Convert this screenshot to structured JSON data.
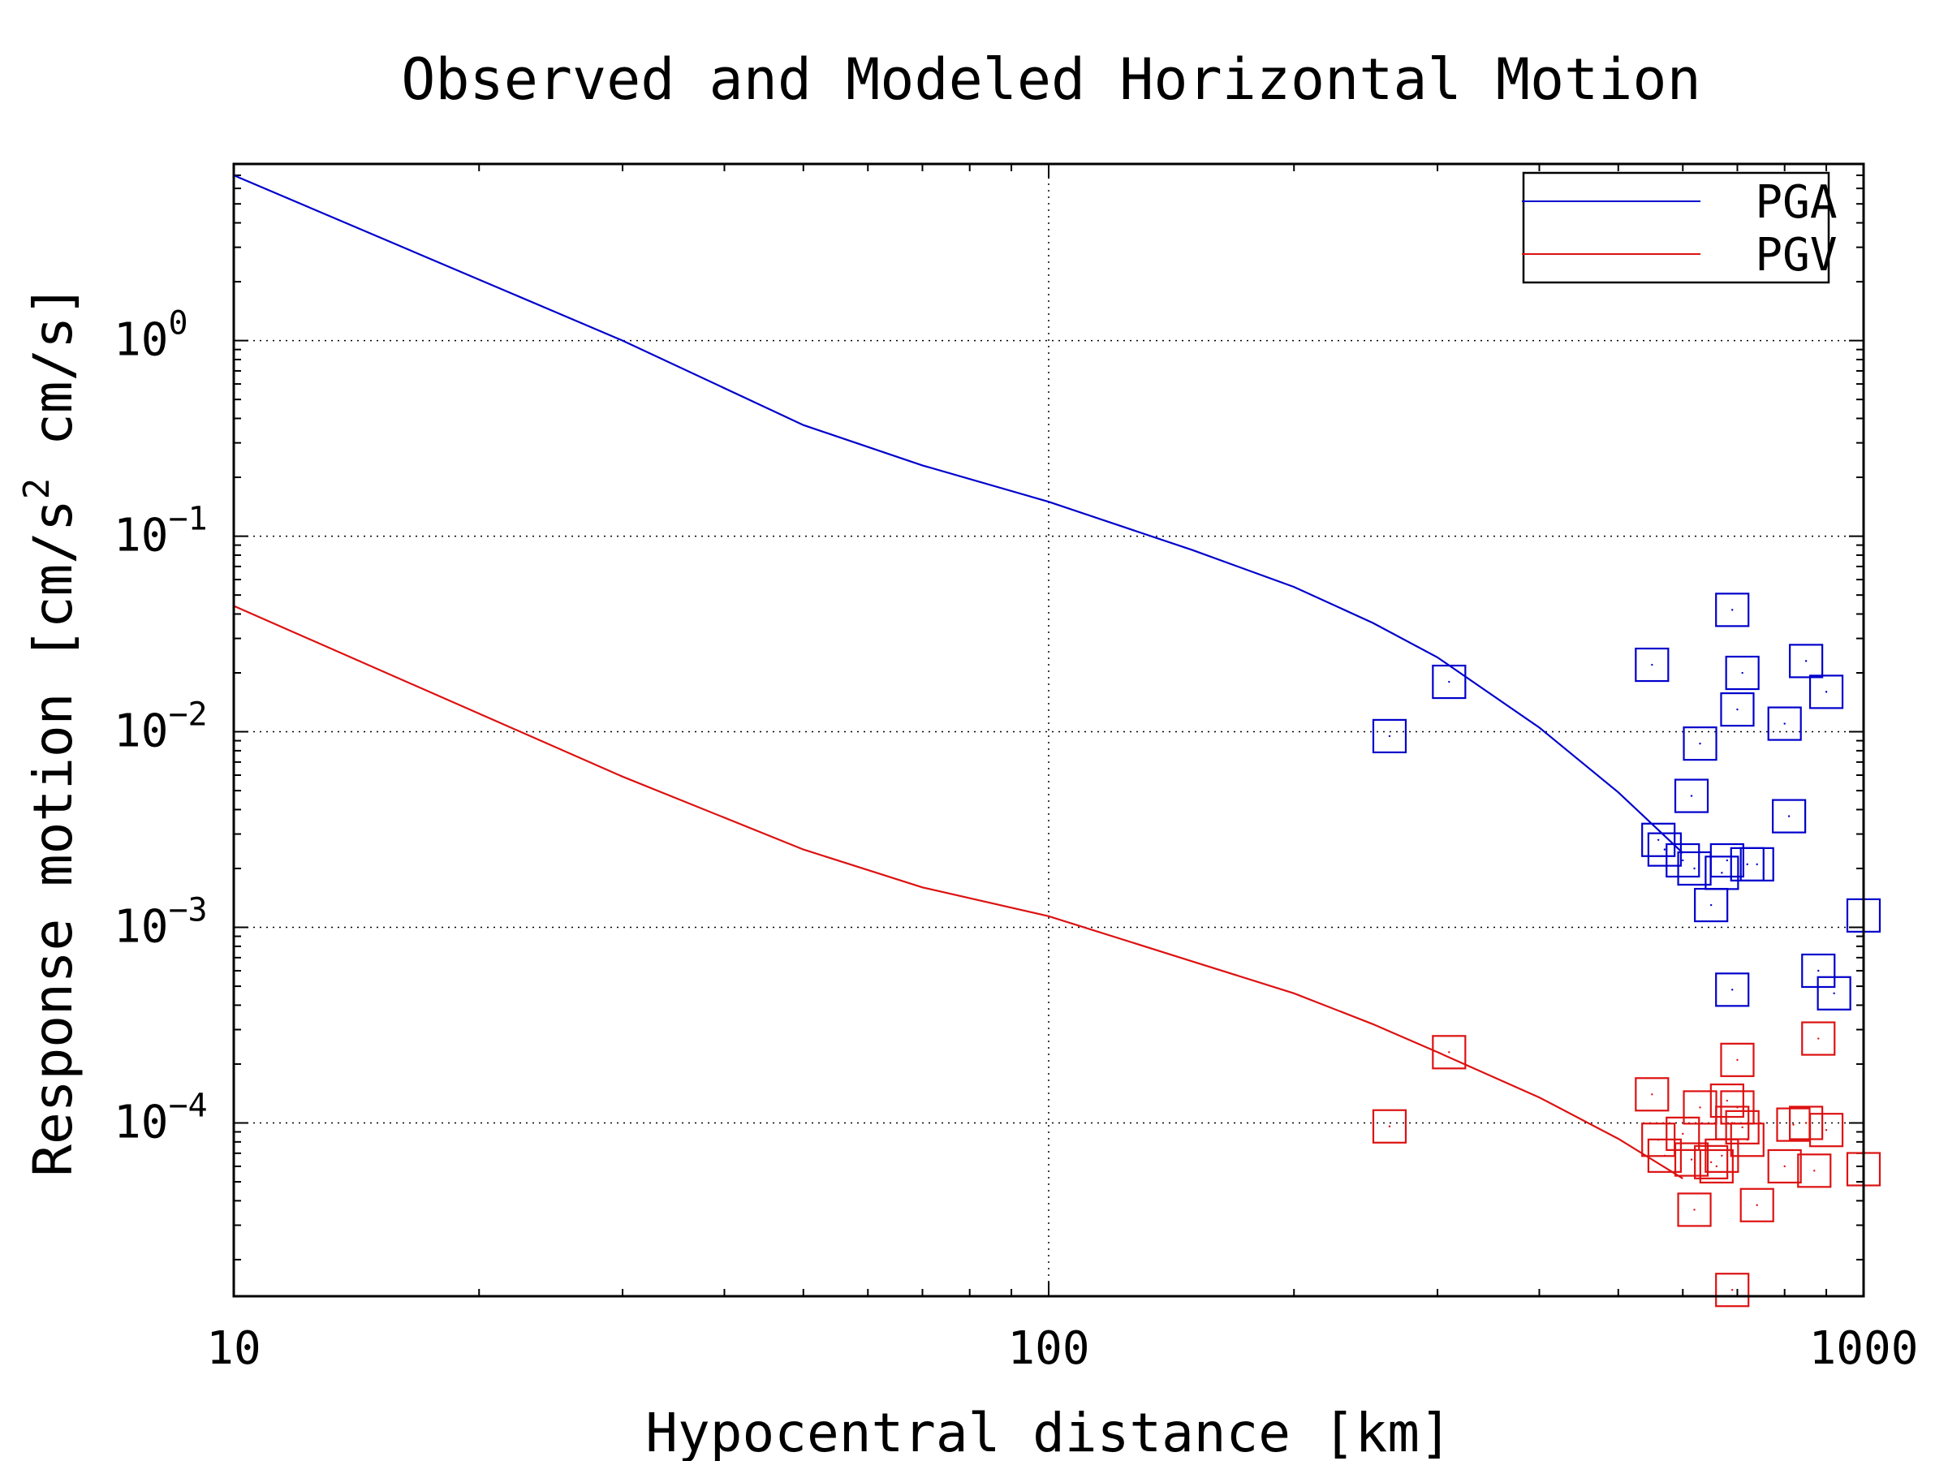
{
  "chart_data": {
    "type": "scatter",
    "title": "Observed and Modeled Horizontal Motion",
    "xlabel": "Hypocentral distance [km]",
    "ylabel": "Response motion  [cm/s",
    "ylabel_sup": "2",
    "ylabel_tail": "  cm/s]",
    "xscale": "log",
    "yscale": "log",
    "xlim": [
      10,
      1000
    ],
    "ylim": [
      1.3e-05,
      8
    ],
    "x_ticks": [
      {
        "value": 10,
        "label": "10"
      },
      {
        "value": 100,
        "label": "100"
      },
      {
        "value": 1000,
        "label": "1000"
      }
    ],
    "y_ticks": [
      {
        "value": 1,
        "base": "10",
        "exp": "0"
      },
      {
        "value": 0.1,
        "base": "10",
        "exp": "−1"
      },
      {
        "value": 0.01,
        "base": "10",
        "exp": "−2"
      },
      {
        "value": 0.001,
        "base": "10",
        "exp": "−3"
      },
      {
        "value": 0.0001,
        "base": "10",
        "exp": "−4"
      }
    ],
    "grid": true,
    "legend_position": "top-right",
    "series": [
      {
        "name": "PGA",
        "color": "#0000cc",
        "line": {
          "x": [
            10,
            30,
            50,
            70,
            100,
            150,
            200,
            250,
            300,
            400,
            500,
            600
          ],
          "y": [
            7.0,
            1.0,
            0.37,
            0.23,
            0.15,
            0.085,
            0.055,
            0.036,
            0.024,
            0.0105,
            0.0049,
            0.0024
          ]
        },
        "points": {
          "x": [
            262,
            310,
            550,
            560,
            570,
            600,
            615,
            620,
            630,
            650,
            670,
            680,
            690,
            690,
            700,
            710,
            720,
            740,
            800,
            810,
            850,
            880,
            900,
            920,
            1000
          ],
          "y": [
            0.0095,
            0.018,
            0.022,
            0.0028,
            0.0025,
            0.0022,
            0.0047,
            0.002,
            0.0087,
            0.0013,
            0.0019,
            0.0022,
            0.00048,
            0.042,
            0.013,
            0.02,
            0.0021,
            0.0021,
            0.011,
            0.0037,
            0.023,
            0.0006,
            0.016,
            0.00046,
            0.00115
          ]
        }
      },
      {
        "name": "PGV",
        "color": "#dd1111",
        "line": {
          "x": [
            10,
            30,
            50,
            70,
            100,
            150,
            200,
            250,
            300,
            400,
            500,
            600
          ],
          "y": [
            0.044,
            0.0059,
            0.0025,
            0.0016,
            0.00114,
            0.00067,
            0.00046,
            0.00032,
            0.00023,
            0.000135,
            8.3e-05,
            5.2e-05
          ]
        },
        "points": {
          "x": [
            262,
            310,
            550,
            560,
            570,
            600,
            615,
            620,
            630,
            650,
            660,
            670,
            680,
            690,
            690,
            700,
            700,
            710,
            720,
            740,
            800,
            820,
            850,
            870,
            880,
            900,
            1000
          ],
          "y": [
            9.6e-05,
            0.00023,
            0.00014,
            8.2e-05,
            6.8e-05,
            8.8e-05,
            6.5e-05,
            3.6e-05,
            0.00012,
            6.3e-05,
            6e-05,
            6.8e-05,
            0.00013,
            1.4e-05,
            0.0001,
            0.00021,
            0.00012,
            9.5e-05,
            8.2e-05,
            3.8e-05,
            6e-05,
            9.8e-05,
            0.0001,
            5.7e-05,
            0.00027,
            9.2e-05,
            5.8e-05
          ]
        }
      }
    ]
  }
}
